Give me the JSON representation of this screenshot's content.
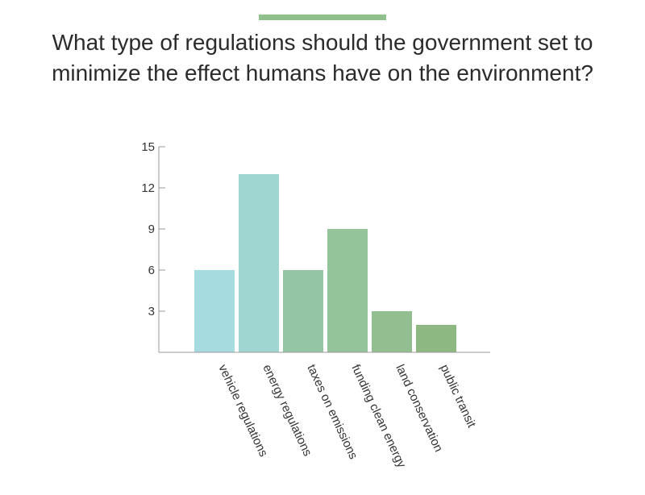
{
  "header": {
    "accent_color": "#8dc08b",
    "title_line1": "What type of regulations should the government set to",
    "title_line2": "minimize the effect humans have on the environment?"
  },
  "chart_data": {
    "type": "bar",
    "title": "What type of regulations should the government set to minimize the effect humans have on the environment?",
    "categories": [
      "vehicle regulations",
      "energy regulations",
      "taxes on emissions",
      "funding clean energy",
      "land conservation",
      "public transit"
    ],
    "values": [
      6,
      13,
      6,
      9,
      3,
      2
    ],
    "colors": [
      "#a6dbe0",
      "#a0d6d1",
      "#94c6a5",
      "#94c49a",
      "#93be90",
      "#8db882"
    ],
    "ylim": [
      0,
      15
    ],
    "yticks": [
      3,
      6,
      9,
      12,
      15
    ],
    "xlabel": "",
    "ylabel": "",
    "grid": false,
    "axis_color": "#9a9a9a"
  }
}
